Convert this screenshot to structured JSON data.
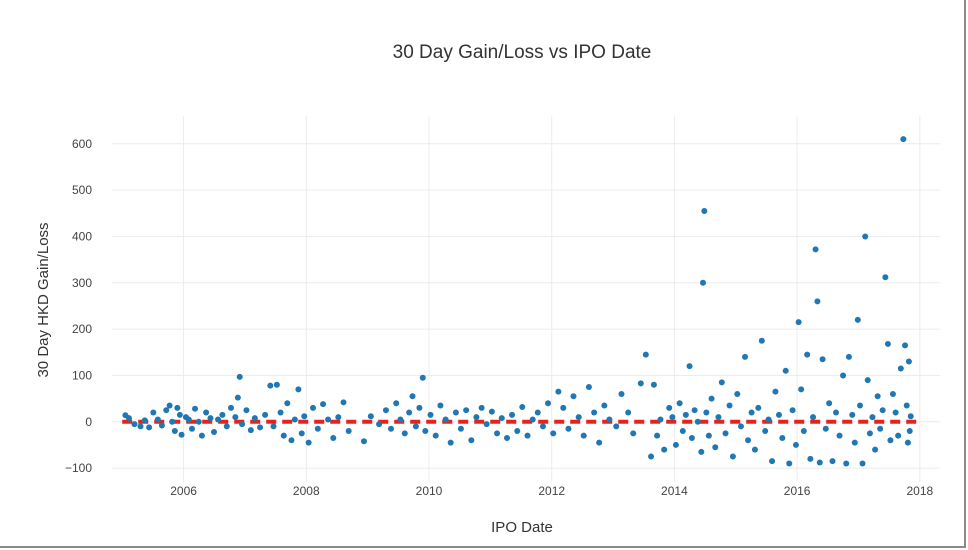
{
  "chart_data": {
    "type": "scatter",
    "title": "30 Day Gain/Loss vs IPO Date",
    "xlabel": "IPO Date",
    "ylabel": "30 Day HKD Gain/Loss",
    "x_ticks": [
      "2006",
      "2008",
      "2010",
      "2012",
      "2014",
      "2016",
      "2018"
    ],
    "y_ticks": [
      "−100",
      "0",
      "100",
      "200",
      "300",
      "400",
      "500",
      "600"
    ],
    "xlim": [
      "2004-11-01",
      "2018-05-01"
    ],
    "ylim": [
      -130,
      660
    ],
    "grid": true,
    "colors": {
      "points": "#1f77b4",
      "reference_line": "#e8221b",
      "grid": "#ececec"
    },
    "reference_line": {
      "style": "dashed",
      "y": 0,
      "x_range": [
        "2005-01-01",
        "2017-12-31"
      ]
    },
    "series": [
      {
        "points": [
          [
            "2005-01-20",
            14
          ],
          [
            "2005-02-10",
            8
          ],
          [
            "2005-03-15",
            -5
          ],
          [
            "2005-04-20",
            -10
          ],
          [
            "2005-05-15",
            3
          ],
          [
            "2005-06-10",
            -12
          ],
          [
            "2005-07-05",
            20
          ],
          [
            "2005-08-01",
            5
          ],
          [
            "2005-08-25",
            -8
          ],
          [
            "2005-09-20",
            25
          ],
          [
            "2005-10-10",
            35
          ],
          [
            "2005-10-25",
            0
          ],
          [
            "2005-11-10",
            -20
          ],
          [
            "2005-11-25",
            30
          ],
          [
            "2005-12-10",
            15
          ],
          [
            "2005-12-20",
            -28
          ],
          [
            "2006-01-15",
            10
          ],
          [
            "2006-02-01",
            5
          ],
          [
            "2006-02-20",
            -15
          ],
          [
            "2006-03-10",
            28
          ],
          [
            "2006-04-01",
            0
          ],
          [
            "2006-04-20",
            -30
          ],
          [
            "2006-05-15",
            20
          ],
          [
            "2006-06-10",
            8
          ],
          [
            "2006-07-01",
            -22
          ],
          [
            "2006-07-25",
            5
          ],
          [
            "2006-08-20",
            15
          ],
          [
            "2006-09-15",
            -10
          ],
          [
            "2006-10-10",
            30
          ],
          [
            "2006-11-05",
            10
          ],
          [
            "2006-11-20",
            52
          ],
          [
            "2006-12-01",
            97
          ],
          [
            "2006-12-15",
            -5
          ],
          [
            "2007-01-10",
            25
          ],
          [
            "2007-02-05",
            -18
          ],
          [
            "2007-03-01",
            8
          ],
          [
            "2007-04-01",
            -12
          ],
          [
            "2007-05-01",
            15
          ],
          [
            "2007-06-01",
            78
          ],
          [
            "2007-06-20",
            -10
          ],
          [
            "2007-07-10",
            80
          ],
          [
            "2007-08-01",
            20
          ],
          [
            "2007-08-20",
            -30
          ],
          [
            "2007-09-10",
            40
          ],
          [
            "2007-10-05",
            -40
          ],
          [
            "2007-10-25",
            5
          ],
          [
            "2007-11-15",
            70
          ],
          [
            "2007-12-05",
            -25
          ],
          [
            "2007-12-20",
            12
          ],
          [
            "2008-01-15",
            -45
          ],
          [
            "2008-02-10",
            30
          ],
          [
            "2008-03-10",
            -15
          ],
          [
            "2008-04-10",
            38
          ],
          [
            "2008-05-10",
            5
          ],
          [
            "2008-06-10",
            -35
          ],
          [
            "2008-07-10",
            10
          ],
          [
            "2008-08-10",
            42
          ],
          [
            "2008-09-10",
            -20
          ],
          [
            "2008-12-10",
            -42
          ],
          [
            "2009-01-20",
            12
          ],
          [
            "2009-03-10",
            -5
          ],
          [
            "2009-04-20",
            25
          ],
          [
            "2009-05-20",
            -15
          ],
          [
            "2009-06-20",
            40
          ],
          [
            "2009-07-15",
            5
          ],
          [
            "2009-08-10",
            -25
          ],
          [
            "2009-09-05",
            20
          ],
          [
            "2009-09-25",
            55
          ],
          [
            "2009-10-15",
            -10
          ],
          [
            "2009-11-05",
            30
          ],
          [
            "2009-11-25",
            95
          ],
          [
            "2009-12-10",
            -20
          ],
          [
            "2010-01-10",
            15
          ],
          [
            "2010-02-10",
            -30
          ],
          [
            "2010-03-10",
            35
          ],
          [
            "2010-04-10",
            5
          ],
          [
            "2010-05-10",
            -45
          ],
          [
            "2010-06-10",
            20
          ],
          [
            "2010-07-10",
            -15
          ],
          [
            "2010-08-10",
            25
          ],
          [
            "2010-09-10",
            -40
          ],
          [
            "2010-10-10",
            10
          ],
          [
            "2010-11-10",
            30
          ],
          [
            "2010-12-10",
            -5
          ],
          [
            "2011-01-10",
            22
          ],
          [
            "2011-02-10",
            -25
          ],
          [
            "2011-03-10",
            8
          ],
          [
            "2011-04-10",
            -35
          ],
          [
            "2011-05-10",
            15
          ],
          [
            "2011-06-10",
            -20
          ],
          [
            "2011-07-10",
            32
          ],
          [
            "2011-08-10",
            -30
          ],
          [
            "2011-09-10",
            5
          ],
          [
            "2011-10-10",
            20
          ],
          [
            "2011-11-10",
            -10
          ],
          [
            "2011-12-10",
            40
          ],
          [
            "2012-01-10",
            -25
          ],
          [
            "2012-02-10",
            65
          ],
          [
            "2012-03-10",
            30
          ],
          [
            "2012-04-10",
            -15
          ],
          [
            "2012-05-10",
            55
          ],
          [
            "2012-06-10",
            10
          ],
          [
            "2012-07-10",
            -30
          ],
          [
            "2012-08-10",
            75
          ],
          [
            "2012-09-10",
            20
          ],
          [
            "2012-10-10",
            -45
          ],
          [
            "2012-11-10",
            35
          ],
          [
            "2012-12-10",
            5
          ],
          [
            "2013-01-20",
            -10
          ],
          [
            "2013-02-20",
            60
          ],
          [
            "2013-04-01",
            20
          ],
          [
            "2013-05-01",
            -25
          ],
          [
            "2013-06-15",
            83
          ],
          [
            "2013-07-15",
            145
          ],
          [
            "2013-08-15",
            -75
          ],
          [
            "2013-09-01",
            80
          ],
          [
            "2013-09-20",
            -30
          ],
          [
            "2013-10-10",
            5
          ],
          [
            "2013-11-01",
            -60
          ],
          [
            "2013-12-01",
            30
          ],
          [
            "2013-12-20",
            10
          ],
          [
            "2014-01-10",
            -50
          ],
          [
            "2014-02-01",
            40
          ],
          [
            "2014-02-20",
            -20
          ],
          [
            "2014-03-10",
            15
          ],
          [
            "2014-04-01",
            120
          ],
          [
            "2014-04-15",
            -35
          ],
          [
            "2014-05-01",
            25
          ],
          [
            "2014-05-20",
            0
          ],
          [
            "2014-06-10",
            -65
          ],
          [
            "2014-06-20",
            300
          ],
          [
            "2014-06-28",
            455
          ],
          [
            "2014-07-10",
            20
          ],
          [
            "2014-07-25",
            -30
          ],
          [
            "2014-08-10",
            50
          ],
          [
            "2014-09-01",
            -55
          ],
          [
            "2014-09-20",
            10
          ],
          [
            "2014-10-10",
            85
          ],
          [
            "2014-11-01",
            -25
          ],
          [
            "2014-11-25",
            35
          ],
          [
            "2014-12-15",
            -75
          ],
          [
            "2015-01-10",
            60
          ],
          [
            "2015-02-01",
            -10
          ],
          [
            "2015-02-25",
            140
          ],
          [
            "2015-03-15",
            -40
          ],
          [
            "2015-04-05",
            20
          ],
          [
            "2015-04-25",
            -60
          ],
          [
            "2015-05-15",
            30
          ],
          [
            "2015-06-05",
            175
          ],
          [
            "2015-06-25",
            -20
          ],
          [
            "2015-07-15",
            5
          ],
          [
            "2015-08-05",
            -85
          ],
          [
            "2015-08-25",
            65
          ],
          [
            "2015-09-15",
            15
          ],
          [
            "2015-10-05",
            -35
          ],
          [
            "2015-10-25",
            110
          ],
          [
            "2015-11-15",
            -90
          ],
          [
            "2015-12-05",
            25
          ],
          [
            "2015-12-25",
            -50
          ],
          [
            "2016-01-10",
            215
          ],
          [
            "2016-01-25",
            70
          ],
          [
            "2016-02-10",
            -20
          ],
          [
            "2016-03-01",
            145
          ],
          [
            "2016-03-20",
            -80
          ],
          [
            "2016-04-05",
            10
          ],
          [
            "2016-04-20",
            372
          ],
          [
            "2016-05-01",
            260
          ],
          [
            "2016-05-15",
            -88
          ],
          [
            "2016-06-01",
            135
          ],
          [
            "2016-06-20",
            -15
          ],
          [
            "2016-07-10",
            40
          ],
          [
            "2016-07-30",
            -85
          ],
          [
            "2016-08-20",
            20
          ],
          [
            "2016-09-10",
            -30
          ],
          [
            "2016-10-01",
            100
          ],
          [
            "2016-10-20",
            -90
          ],
          [
            "2016-11-05",
            140
          ],
          [
            "2016-11-25",
            15
          ],
          [
            "2016-12-10",
            -45
          ],
          [
            "2016-12-28",
            220
          ],
          [
            "2017-01-10",
            35
          ],
          [
            "2017-01-25",
            -90
          ],
          [
            "2017-02-10",
            400
          ],
          [
            "2017-02-25",
            90
          ],
          [
            "2017-03-10",
            -25
          ],
          [
            "2017-03-25",
            10
          ],
          [
            "2017-04-10",
            -60
          ],
          [
            "2017-04-25",
            55
          ],
          [
            "2017-05-10",
            -15
          ],
          [
            "2017-05-25",
            25
          ],
          [
            "2017-06-10",
            312
          ],
          [
            "2017-06-25",
            168
          ],
          [
            "2017-07-10",
            -40
          ],
          [
            "2017-07-25",
            60
          ],
          [
            "2017-08-10",
            20
          ],
          [
            "2017-08-25",
            -30
          ],
          [
            "2017-09-10",
            115
          ],
          [
            "2017-09-25",
            610
          ],
          [
            "2017-10-05",
            165
          ],
          [
            "2017-10-15",
            35
          ],
          [
            "2017-10-22",
            -45
          ],
          [
            "2017-10-28",
            130
          ],
          [
            "2017-11-02",
            -20
          ],
          [
            "2017-11-08",
            12
          ]
        ]
      }
    ]
  }
}
